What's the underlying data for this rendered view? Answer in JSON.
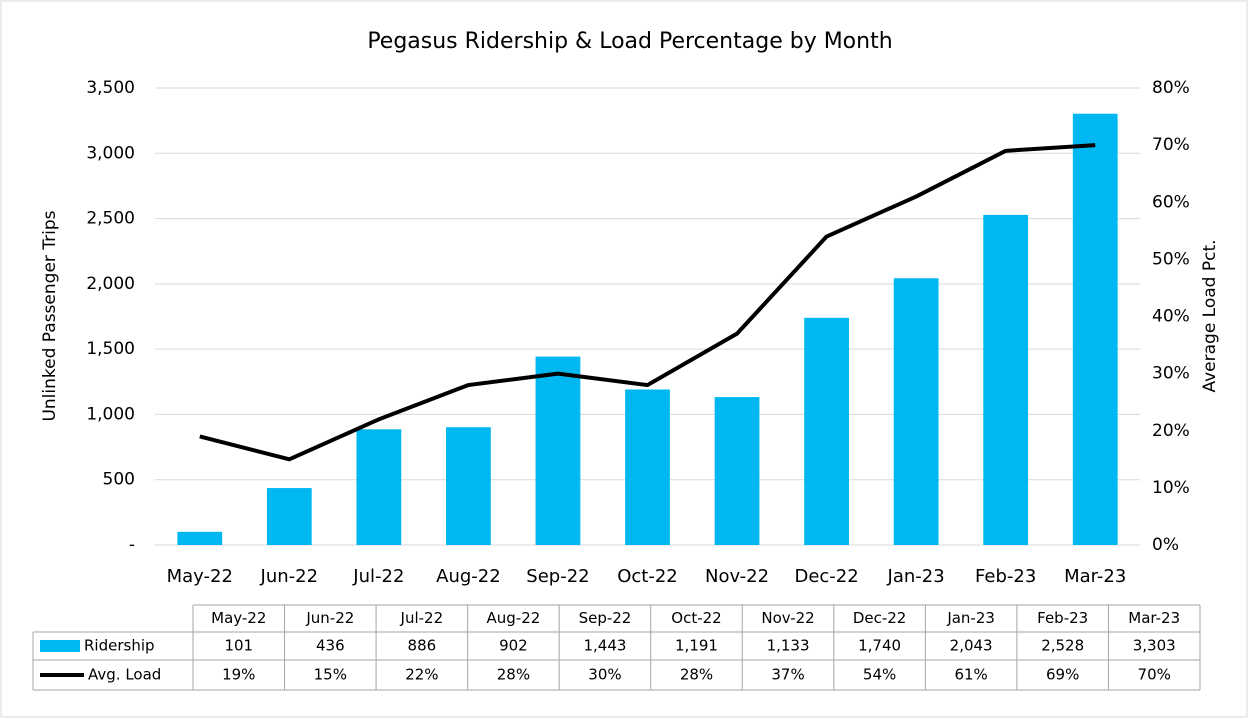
{
  "chart_data": {
    "type": "bar_line",
    "title": "Pegasus Ridership & Load Percentage by Month",
    "y_label": "Unlinked Passenger Trips",
    "y2_label": "Average Load Pct.",
    "categories": [
      "May-22",
      "Jun-22",
      "Jul-22",
      "Aug-22",
      "Sep-22",
      "Oct-22",
      "Nov-22",
      "Dec-22",
      "Jan-23",
      "Feb-23",
      "Mar-23"
    ],
    "series": [
      {
        "name": "Ridership",
        "type": "bar",
        "color": "#00b8f1",
        "values": [
          101,
          436,
          886,
          902,
          1443,
          1191,
          1133,
          1740,
          2043,
          2528,
          3303
        ],
        "value_labels": [
          "101",
          "436",
          "886",
          "902",
          "1,443",
          "1,191",
          "1,133",
          "1,740",
          "2,043",
          "2,528",
          "3,303"
        ]
      },
      {
        "name": "Avg. Load",
        "type": "line",
        "color": "#000000",
        "axis": "y2",
        "values": [
          19,
          15,
          22,
          28,
          30,
          28,
          37,
          54,
          61,
          69,
          70
        ],
        "value_labels": [
          "19%",
          "15%",
          "22%",
          "28%",
          "30%",
          "28%",
          "37%",
          "54%",
          "61%",
          "69%",
          "70%"
        ]
      }
    ],
    "ylim": [
      0,
      3500
    ],
    "yticks": [
      {
        "value": 0,
        "label": "-"
      },
      500,
      {
        "value": 1000,
        "label": "1,000"
      },
      {
        "value": 1500,
        "label": "1,500"
      },
      {
        "value": 2000,
        "label": "2,000"
      },
      {
        "value": 2500,
        "label": "2,500"
      },
      {
        "value": 3000,
        "label": "3,000"
      },
      {
        "value": 3500,
        "label": "3,500"
      }
    ],
    "y2lim": [
      0,
      80
    ],
    "y2ticks": [
      {
        "value": 0,
        "label": "0%"
      },
      {
        "value": 10,
        "label": "10%"
      },
      {
        "value": 20,
        "label": "20%"
      },
      {
        "value": 30,
        "label": "30%"
      },
      {
        "value": 40,
        "label": "40%"
      },
      {
        "value": 50,
        "label": "50%"
      },
      {
        "value": 60,
        "label": "60%"
      },
      {
        "value": 70,
        "label": "70%"
      },
      {
        "value": 80,
        "label": "80%"
      }
    ],
    "grid": true
  }
}
